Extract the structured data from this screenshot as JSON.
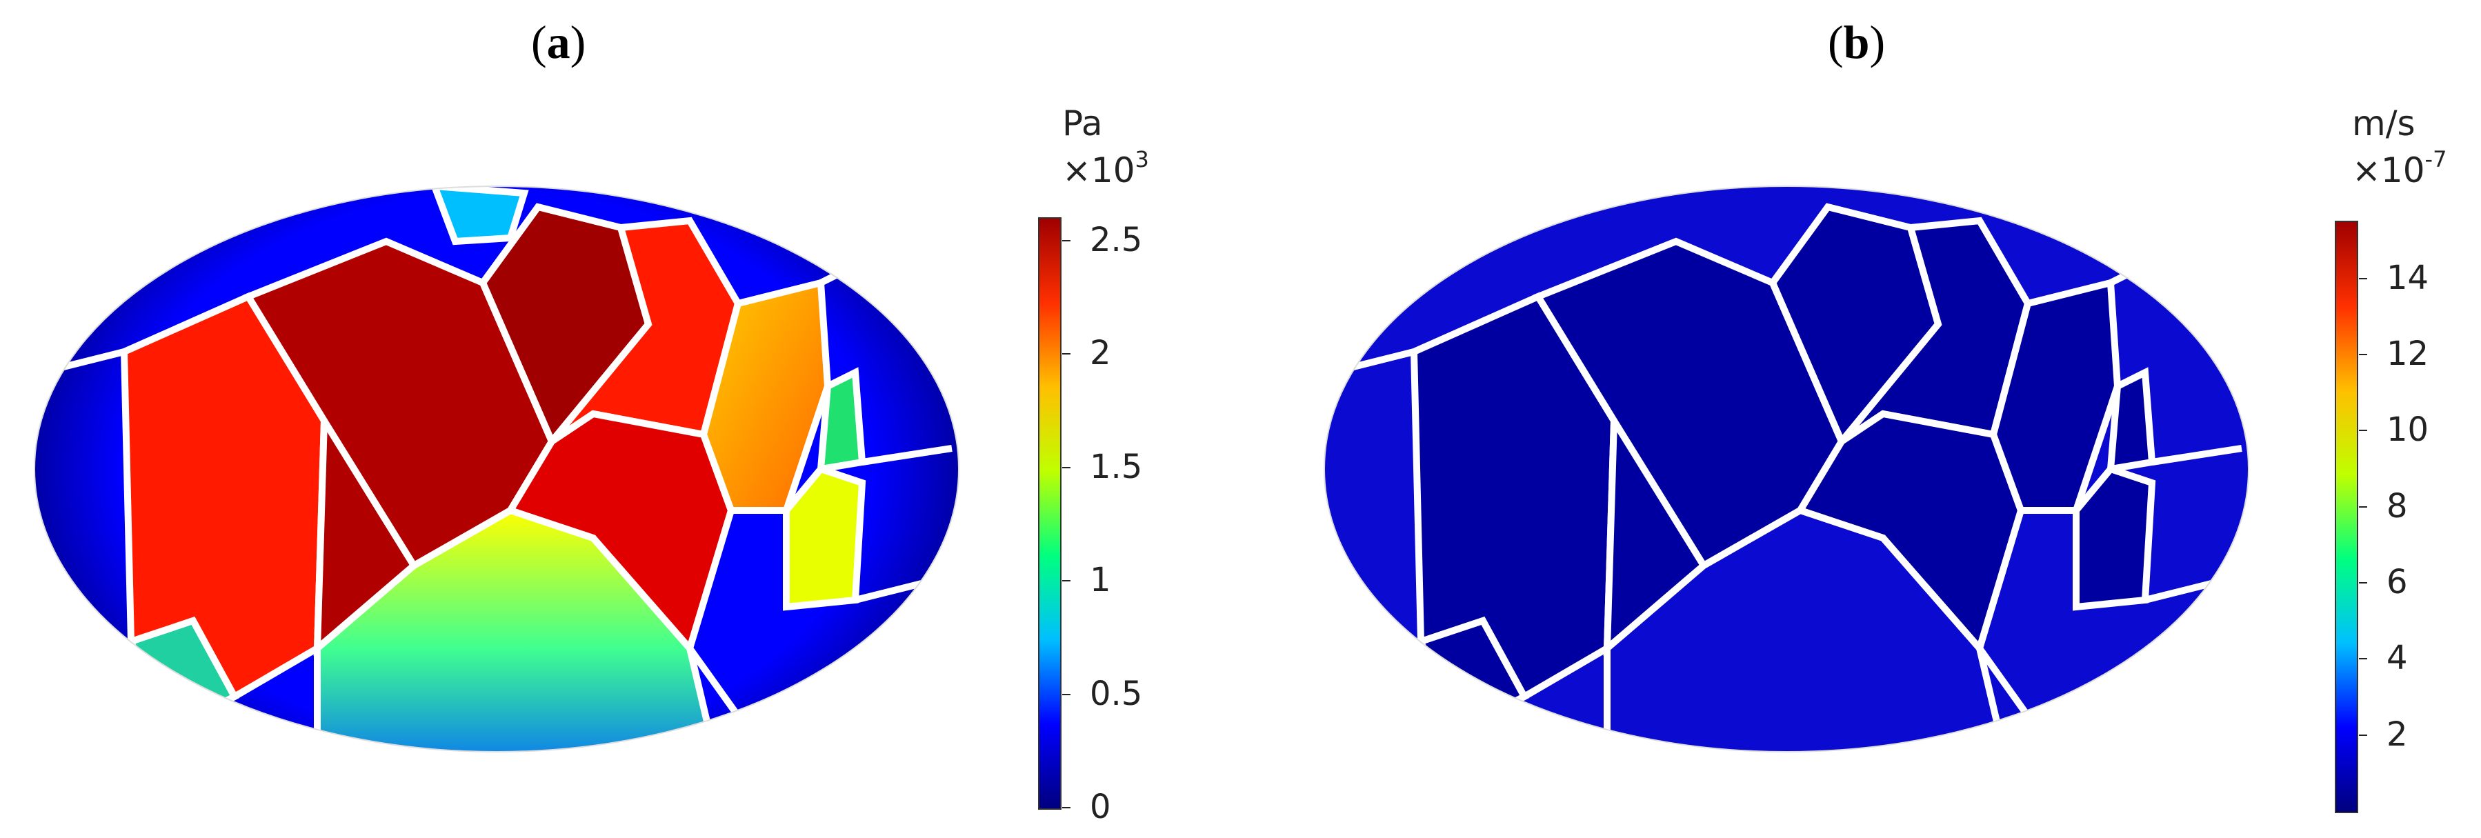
{
  "panels": [
    {
      "label_open": "(",
      "label_letter": "a",
      "label_close": ")",
      "colorbar": {
        "unit": "Pa",
        "multiplier_base": "×10",
        "multiplier_exp": "3",
        "ticks": [
          "0",
          "0.5",
          "1",
          "1.5",
          "2",
          "2.5"
        ],
        "tick_values": [
          0,
          0.5,
          1,
          1.5,
          2,
          2.5
        ],
        "min": 0,
        "max": 2.6
      }
    },
    {
      "label_open": "(",
      "label_letter": "b",
      "label_close": ")",
      "colorbar": {
        "unit": "m/s",
        "multiplier_base": "×10",
        "multiplier_exp": "-7",
        "ticks": [
          "2",
          "4",
          "6",
          "8",
          "10",
          "12",
          "14"
        ],
        "tick_values": [
          2,
          4,
          6,
          8,
          10,
          12,
          14
        ],
        "min": 0,
        "max": 15.5
      }
    }
  ],
  "colormap": [
    "#00007f",
    "#0000ff",
    "#00bfff",
    "#00ff7f",
    "#bfff00",
    "#ffbf00",
    "#ff3000",
    "#a00000"
  ]
}
